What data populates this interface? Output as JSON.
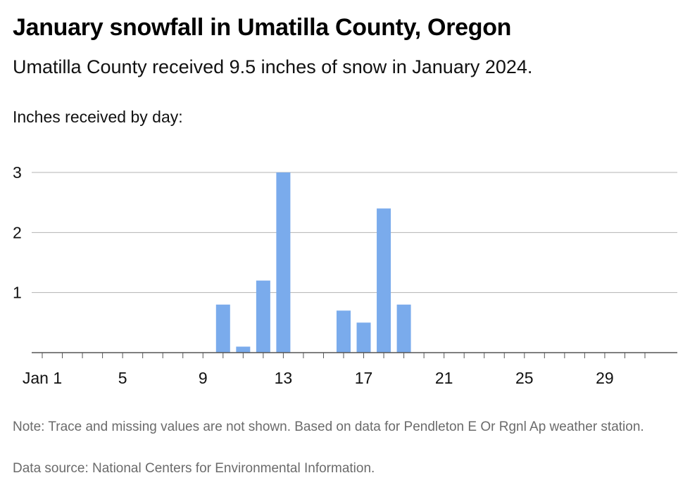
{
  "header": {
    "title": "January snowfall in Umatilla County, Oregon",
    "subtitle": "Umatilla County received 9.5 inches of snow in January 2024.",
    "chart_label": "Inches received by day:"
  },
  "footer": {
    "note": "Note: Trace and missing values are not shown. Based on data for Pendleton E Or Rgnl Ap weather station.",
    "source": "Data source: National Centers for Environmental Information."
  },
  "colors": {
    "bar": "#7aabec",
    "grid": "#b3b3b3",
    "axis": "#555555"
  },
  "chart_data": {
    "type": "bar",
    "title": "January snowfall in Umatilla County, Oregon",
    "ylabel": "Inches received by day:",
    "xlabel": "",
    "x_domain": [
      1,
      31
    ],
    "ylim": [
      0,
      3
    ],
    "y_ticks": [
      1,
      2,
      3
    ],
    "x_ticks": [
      {
        "day": 1,
        "label": "Jan 1"
      },
      {
        "day": 5,
        "label": "5"
      },
      {
        "day": 9,
        "label": "9"
      },
      {
        "day": 13,
        "label": "13"
      },
      {
        "day": 17,
        "label": "17"
      },
      {
        "day": 21,
        "label": "21"
      },
      {
        "day": 25,
        "label": "25"
      },
      {
        "day": 29,
        "label": "29"
      }
    ],
    "grid": true,
    "days": [
      10,
      11,
      12,
      13,
      16,
      17,
      18,
      19
    ],
    "values": [
      0.8,
      0.1,
      1.2,
      3.0,
      0.7,
      0.5,
      2.4,
      0.8
    ]
  }
}
